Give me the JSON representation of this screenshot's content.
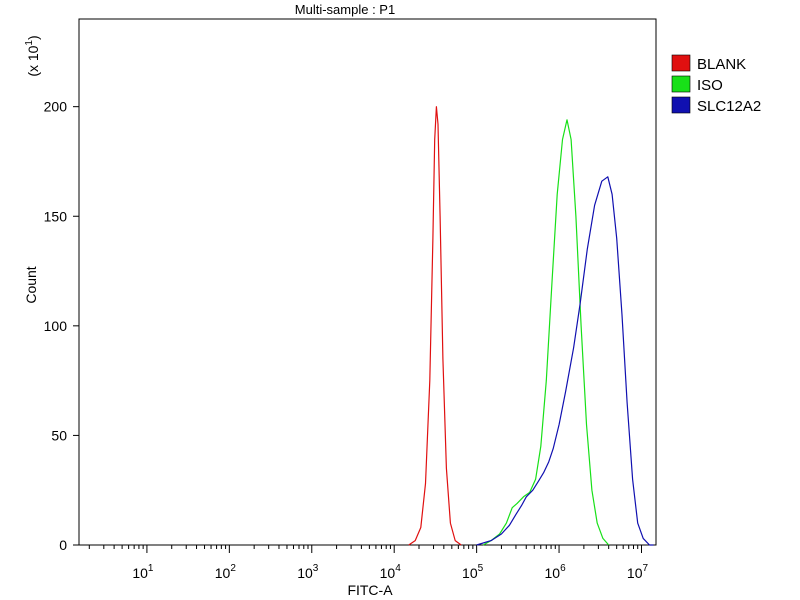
{
  "chart_data": {
    "type": "line",
    "title": "Multi-sample : P1",
    "xlabel": "FITC-A",
    "ylabel": "Count",
    "y_multiplier_label": "(x 10",
    "y_multiplier_exp": "1",
    "y_multiplier_close": ")",
    "x_scale": "log",
    "xlim": [
      1.5,
      15000000
    ],
    "ylim": [
      0,
      240
    ],
    "x_ticks": [
      {
        "value": 10,
        "base": "10",
        "exp": "1"
      },
      {
        "value": 100,
        "base": "10",
        "exp": "2"
      },
      {
        "value": 1000,
        "base": "10",
        "exp": "3"
      },
      {
        "value": 10000,
        "base": "10",
        "exp": "4"
      },
      {
        "value": 100000,
        "base": "10",
        "exp": "5"
      },
      {
        "value": 1000000,
        "base": "10",
        "exp": "6"
      },
      {
        "value": 10000000,
        "base": "10",
        "exp": "7"
      }
    ],
    "y_ticks": [
      0,
      50,
      100,
      150,
      200
    ],
    "grid": false,
    "legend_position": "top-right",
    "series": [
      {
        "name": "BLANK",
        "color": "#e01010",
        "points": [
          [
            15000,
            0
          ],
          [
            18000,
            2
          ],
          [
            21000,
            8
          ],
          [
            24000,
            28
          ],
          [
            27000,
            75
          ],
          [
            29500,
            140
          ],
          [
            31000,
            185
          ],
          [
            32500,
            200
          ],
          [
            34000,
            192
          ],
          [
            36000,
            150
          ],
          [
            39000,
            85
          ],
          [
            43000,
            35
          ],
          [
            48000,
            10
          ],
          [
            55000,
            2
          ],
          [
            65000,
            0
          ]
        ]
      },
      {
        "name": "ISO",
        "color": "#18e018",
        "points": [
          [
            120000,
            0
          ],
          [
            150000,
            2
          ],
          [
            190000,
            5
          ],
          [
            230000,
            10
          ],
          [
            270000,
            17
          ],
          [
            310000,
            19
          ],
          [
            370000,
            22
          ],
          [
            440000,
            24
          ],
          [
            520000,
            30
          ],
          [
            600000,
            45
          ],
          [
            700000,
            75
          ],
          [
            820000,
            120
          ],
          [
            950000,
            160
          ],
          [
            1100000,
            185
          ],
          [
            1250000,
            194
          ],
          [
            1400000,
            185
          ],
          [
            1600000,
            150
          ],
          [
            1850000,
            100
          ],
          [
            2150000,
            55
          ],
          [
            2500000,
            25
          ],
          [
            2900000,
            10
          ],
          [
            3400000,
            3
          ],
          [
            4000000,
            0
          ]
        ]
      },
      {
        "name": "SLC12A2",
        "color": "#1010b0",
        "points": [
          [
            100000,
            0
          ],
          [
            150000,
            2
          ],
          [
            200000,
            5
          ],
          [
            250000,
            9
          ],
          [
            300000,
            14
          ],
          [
            350000,
            18
          ],
          [
            400000,
            22
          ],
          [
            480000,
            25
          ],
          [
            560000,
            29
          ],
          [
            650000,
            33
          ],
          [
            750000,
            38
          ],
          [
            850000,
            44
          ],
          [
            1000000,
            55
          ],
          [
            1200000,
            70
          ],
          [
            1500000,
            90
          ],
          [
            1800000,
            110
          ],
          [
            2200000,
            135
          ],
          [
            2700000,
            155
          ],
          [
            3300000,
            166
          ],
          [
            3900000,
            168
          ],
          [
            4400000,
            160
          ],
          [
            5000000,
            140
          ],
          [
            5800000,
            105
          ],
          [
            6700000,
            65
          ],
          [
            7800000,
            30
          ],
          [
            9000000,
            10
          ],
          [
            10500000,
            3
          ],
          [
            12500000,
            0
          ],
          [
            14000000,
            0
          ]
        ]
      }
    ]
  }
}
